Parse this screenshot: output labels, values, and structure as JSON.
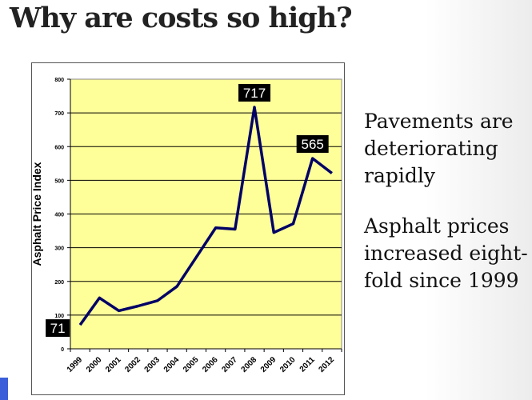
{
  "slide": {
    "title": "Why are costs so high?",
    "bullets": [
      "Pavements are deteriorating rapidly",
      "Asphalt prices increased eight-fold since 1999"
    ]
  },
  "chart_data": {
    "type": "line",
    "title": "",
    "xlabel": "",
    "ylabel": "Asphalt Price Index",
    "categories": [
      "1999",
      "2000",
      "2001",
      "2002",
      "2003",
      "2004",
      "2005",
      "2006",
      "2007",
      "2008",
      "2009",
      "2010",
      "2011",
      "2012"
    ],
    "series": [
      {
        "name": "Asphalt Price Index",
        "values": [
          71,
          151,
          113,
          127,
          143,
          185,
          272,
          359,
          355,
          717,
          345,
          371,
          565,
          521
        ]
      }
    ],
    "ylim": [
      0,
      800
    ],
    "yticks": [
      0,
      100,
      200,
      300,
      400,
      500,
      600,
      700,
      800
    ],
    "grid": true,
    "annotations": [
      {
        "category": "1999",
        "label": "71"
      },
      {
        "category": "2008",
        "label": "717"
      },
      {
        "category": "2011",
        "label": "565"
      }
    ],
    "colors": {
      "plot_bg": "#ffff99",
      "line": "#000066",
      "label_bg": "#000000",
      "label_text": "#ffffff"
    }
  }
}
